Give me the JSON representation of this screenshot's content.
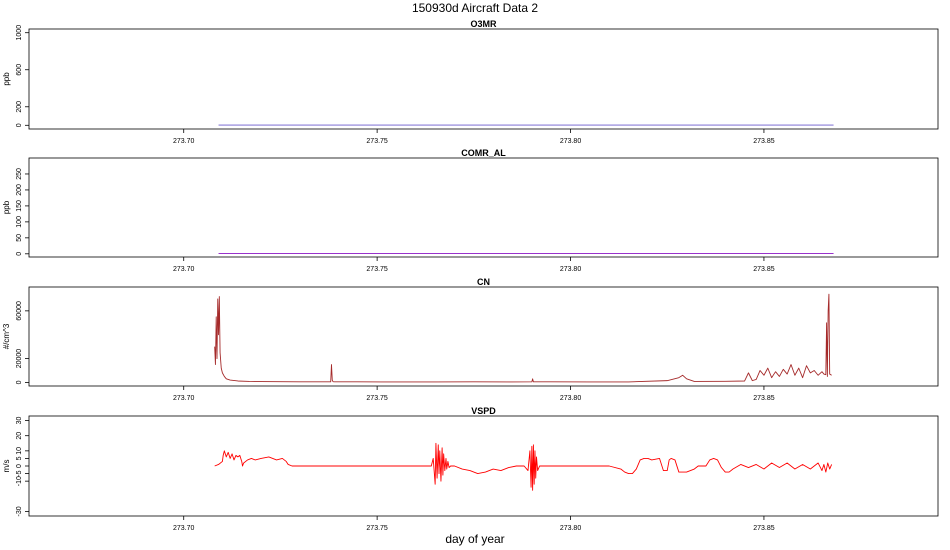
{
  "figure": {
    "title": "150930d   Aircraft Data 2",
    "xlabel": "day of year"
  },
  "chart_data": [
    {
      "type": "line",
      "title": "O3MR",
      "ylabel": "ppb",
      "xlim": [
        273.66,
        273.895
      ],
      "ylim": [
        -40,
        1040
      ],
      "xticks": [
        273.7,
        273.75,
        273.8,
        273.85
      ],
      "xtick_labels": [
        "273.70",
        "273.75",
        "273.80",
        "273.85"
      ],
      "yticks": [
        0,
        200,
        600,
        1000
      ],
      "ytick_labels": [
        "0",
        "200",
        "600",
        "1000"
      ],
      "series": [
        {
          "color": "#6a5acd",
          "x": [
            273.709,
            273.868
          ],
          "y": [
            2,
            2
          ]
        }
      ]
    },
    {
      "type": "line",
      "title": "COMR_AL",
      "ylabel": "ppb",
      "xlim": [
        273.66,
        273.895
      ],
      "ylim": [
        -10,
        300
      ],
      "xticks": [
        273.7,
        273.75,
        273.8,
        273.85
      ],
      "xtick_labels": [
        "273.70",
        "273.75",
        "273.80",
        "273.85"
      ],
      "yticks": [
        0,
        50,
        100,
        150,
        200,
        250
      ],
      "ytick_labels": [
        "0",
        "50",
        "100",
        "150",
        "200",
        "250"
      ],
      "series": [
        {
          "color": "#9932cc",
          "x": [
            273.709,
            273.868
          ],
          "y": [
            1,
            1
          ]
        }
      ]
    },
    {
      "type": "line",
      "title": "CN",
      "ylabel": "#/cm^3",
      "xlim": [
        273.66,
        273.895
      ],
      "ylim": [
        -3000,
        80000
      ],
      "xticks": [
        273.7,
        273.75,
        273.8,
        273.85
      ],
      "xtick_labels": [
        "273.70",
        "273.75",
        "273.80",
        "273.85"
      ],
      "yticks": [
        0,
        20000,
        60000
      ],
      "ytick_labels": [
        "0",
        "20000",
        "60000"
      ],
      "series": [
        {
          "color": "#a52a2a",
          "x": [
            273.708,
            273.7082,
            273.7084,
            273.7086,
            273.7088,
            273.709,
            273.7092,
            273.7094,
            273.7097,
            273.71,
            273.7105,
            273.711,
            273.712,
            273.714,
            273.717,
            273.72,
            273.725,
            273.73,
            273.735,
            273.738,
            273.7382,
            273.7384,
            273.7386,
            273.739,
            273.745,
            273.755,
            273.765,
            273.775,
            273.785,
            273.79,
            273.7902,
            273.7904,
            273.795,
            273.805,
            273.815,
            273.825,
            273.828,
            273.829,
            273.83,
            273.832,
            273.84,
            273.845,
            273.846,
            273.847,
            273.848,
            273.849,
            273.85,
            273.851,
            273.852,
            273.853,
            273.854,
            273.855,
            273.856,
            273.857,
            273.858,
            273.859,
            273.86,
            273.861,
            273.862,
            273.863,
            273.864,
            273.865,
            273.8655,
            273.866,
            273.8662,
            273.8664,
            273.8666,
            273.8668,
            273.867,
            273.8675
          ],
          "y": [
            30000,
            15000,
            55000,
            20000,
            70000,
            40000,
            72000,
            25000,
            12000,
            8000,
            5000,
            3000,
            2000,
            1200,
            800,
            700,
            600,
            500,
            500,
            500,
            15000,
            2000,
            600,
            500,
            500,
            400,
            400,
            500,
            400,
            500,
            3000,
            500,
            500,
            400,
            400,
            1500,
            4000,
            6000,
            3000,
            800,
            900,
            1200,
            8000,
            1500,
            2500,
            10000,
            6000,
            12000,
            4000,
            9000,
            5000,
            11000,
            7000,
            15000,
            6000,
            12000,
            4000,
            14000,
            8000,
            10000,
            6000,
            9000,
            7000,
            6500,
            50000,
            5000,
            60000,
            74000,
            7000,
            6000
          ]
        }
      ]
    },
    {
      "type": "line",
      "title": "VSPD",
      "ylabel": "m/s",
      "xlim": [
        273.66,
        273.895
      ],
      "ylim": [
        -33,
        33
      ],
      "xticks": [
        273.7,
        273.75,
        273.8,
        273.85
      ],
      "xtick_labels": [
        "273.70",
        "273.75",
        "273.80",
        "273.85"
      ],
      "yticks": [
        -30,
        -10,
        -5,
        0,
        5,
        10,
        20,
        30
      ],
      "ytick_labels": [
        "-30",
        "-10",
        "-5",
        "0",
        "5",
        "10",
        "20",
        "30"
      ],
      "series": [
        {
          "color": "#ff0000",
          "x": [
            273.708,
            273.709,
            273.71,
            273.7102,
            273.7105,
            273.711,
            273.7115,
            273.712,
            273.7125,
            273.713,
            273.7135,
            273.714,
            273.7145,
            273.715,
            273.7152,
            273.7155,
            273.7165,
            273.7175,
            273.7185,
            273.72,
            273.722,
            273.724,
            273.7255,
            273.7265,
            273.727,
            273.728,
            273.73,
            273.74,
            273.75,
            273.76,
            273.764,
            273.7645,
            273.765,
            273.7652,
            273.7655,
            273.7658,
            273.766,
            273.7662,
            273.7665,
            273.7668,
            273.767,
            273.7672,
            273.7675,
            273.7678,
            273.768,
            273.7683,
            273.7686,
            273.769,
            273.77,
            273.772,
            273.774,
            273.776,
            273.778,
            273.78,
            273.782,
            273.784,
            273.786,
            273.788,
            273.789,
            273.7895,
            273.7898,
            273.79,
            273.7902,
            273.7904,
            273.7906,
            273.7908,
            273.791,
            273.7912,
            273.7915,
            273.792,
            273.793,
            273.8,
            273.81,
            273.813,
            273.814,
            273.815,
            273.816,
            273.817,
            273.818,
            273.819,
            273.82,
            273.821,
            273.823,
            273.824,
            273.825,
            273.8255,
            273.826,
            273.827,
            273.828,
            273.83,
            273.832,
            273.833,
            273.834,
            273.835,
            273.836,
            273.837,
            273.838,
            273.839,
            273.84,
            273.841,
            273.842,
            273.844,
            273.846,
            273.848,
            273.85,
            273.852,
            273.854,
            273.856,
            273.858,
            273.86,
            273.862,
            273.864,
            273.865,
            273.8655,
            273.866,
            273.8665,
            273.867,
            273.8675
          ],
          "y": [
            0,
            1,
            3,
            7,
            10,
            6,
            9,
            5,
            8,
            4,
            7,
            6,
            7,
            3,
            0,
            2,
            4,
            5,
            4,
            5,
            6,
            4,
            5,
            3,
            1,
            0,
            0,
            0,
            0,
            0,
            0,
            5,
            -12,
            15,
            -8,
            14,
            -5,
            10,
            -10,
            12,
            -6,
            8,
            -3,
            5,
            -2,
            3,
            -1,
            0,
            0,
            -2,
            -3,
            -5,
            -4,
            -2,
            -3,
            -1,
            0,
            0,
            -3,
            10,
            -14,
            13,
            -16,
            14,
            -12,
            10,
            -8,
            6,
            -3,
            0,
            0,
            0,
            0,
            -2,
            -4,
            -5,
            -5,
            -2,
            4,
            5,
            5,
            4,
            5,
            -3,
            -3,
            4,
            5,
            4,
            -4,
            -4,
            -2,
            0,
            0,
            0,
            4,
            5,
            4,
            -1,
            -4,
            -4,
            -2,
            1,
            -1,
            1,
            -2,
            2,
            -1,
            2,
            -2,
            1,
            -2,
            2,
            -3,
            1,
            -4,
            2,
            -2,
            1
          ]
        }
      ]
    }
  ]
}
